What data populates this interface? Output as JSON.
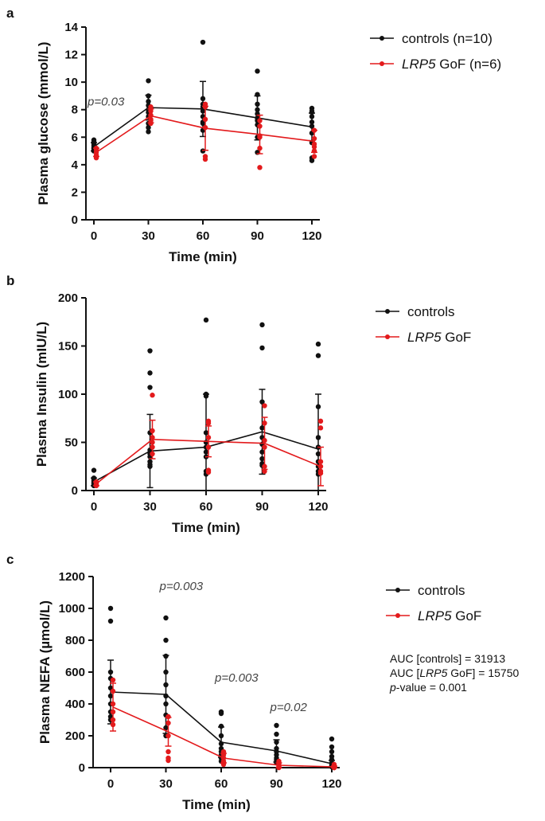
{
  "colors": {
    "controls": "#111111",
    "gof": "#e31a1c"
  },
  "chart_data": [
    {
      "panel": "a",
      "type": "line",
      "xlabel": "Time (min)",
      "ylabel": "Plasma glucose (mmol/L)",
      "x": [
        0,
        30,
        60,
        90,
        120
      ],
      "xticks": [
        "0",
        "30",
        "60",
        "90",
        "120"
      ],
      "yticks": [
        "0",
        "2",
        "4",
        "6",
        "8",
        "10",
        "12",
        "14"
      ],
      "ylim": [
        0,
        14
      ],
      "series": [
        {
          "name": "controls (n=10)",
          "name_parts": [
            "controls (n=10)"
          ],
          "color": "#111111",
          "means": [
            5.3,
            8.15,
            8.05,
            7.4,
            6.75
          ],
          "sd": [
            0.3,
            0.9,
            2.0,
            1.6,
            1.0
          ],
          "points": [
            [
              5.0,
              5.2,
              5.4,
              5.6,
              5.8,
              5.3,
              5.1,
              5.5,
              5.7,
              5.2
            ],
            [
              6.4,
              7.0,
              7.5,
              8.0,
              8.3,
              8.6,
              9.0,
              10.1,
              7.8,
              6.7
            ],
            [
              12.9,
              8.8,
              8.4,
              7.9,
              7.5,
              7.1,
              6.5,
              5.0,
              8.2,
              7.0
            ],
            [
              10.8,
              9.1,
              8.4,
              7.7,
              7.4,
              6.9,
              6.0,
              4.9,
              7.2,
              8.0
            ],
            [
              8.1,
              7.8,
              7.5,
              7.1,
              6.8,
              6.3,
              5.6,
              4.5,
              4.3,
              7.9
            ]
          ]
        },
        {
          "name": "LRP5 GoF (n=6)",
          "name_parts": [
            "LRP5",
            " GoF (n=6)"
          ],
          "color": "#e31a1c",
          "means": [
            4.9,
            7.55,
            6.65,
            6.2,
            5.7
          ],
          "sd": [
            0.3,
            0.5,
            1.6,
            1.4,
            0.8
          ],
          "points": [
            [
              4.5,
              4.7,
              4.9,
              5.1,
              5.2,
              4.6
            ],
            [
              7.0,
              7.3,
              7.6,
              7.9,
              8.2,
              7.2
            ],
            [
              4.4,
              4.6,
              6.7,
              7.3,
              8.2,
              8.4
            ],
            [
              3.8,
              5.2,
              6.1,
              6.8,
              7.2,
              6.0
            ],
            [
              4.6,
              5.0,
              5.5,
              5.9,
              6.5,
              5.3
            ]
          ]
        }
      ],
      "annotations": [
        {
          "text": "p=0.03",
          "x": 0,
          "y": 8.3
        }
      ]
    },
    {
      "panel": "b",
      "type": "line",
      "xlabel": "Time (min)",
      "ylabel": "Plasma Insulin (mIU/L)",
      "x": [
        0,
        30,
        60,
        90,
        120
      ],
      "xticks": [
        "0",
        "30",
        "60",
        "90",
        "120"
      ],
      "yticks": [
        "0",
        "50",
        "100",
        "150",
        "200"
      ],
      "ylim": [
        0,
        200
      ],
      "series": [
        {
          "name": "controls",
          "name_parts": [
            "controls"
          ],
          "color": "#111111",
          "means": [
            9,
            41,
            45,
            61,
            43
          ],
          "sd": [
            4,
            38,
            55,
            44,
            57
          ],
          "points": [
            [
              5,
              8,
              10,
              12,
              21,
              7,
              9,
              6,
              11,
              13
            ],
            [
              145,
              122,
              107,
              60,
              42,
              38,
              35,
              30,
              27,
              25
            ],
            [
              177,
              100,
              98,
              60,
              50,
              45,
              40,
              35,
              20,
              17
            ],
            [
              172,
              148,
              92,
              65,
              55,
              48,
              40,
              33,
              28,
              26
            ],
            [
              152,
              140,
              87,
              55,
              45,
              38,
              30,
              25,
              20,
              17
            ]
          ]
        },
        {
          "name": "LRP5 GoF",
          "name_parts": [
            "LRP5",
            " GoF"
          ],
          "color": "#e31a1c",
          "means": [
            7,
            53,
            51,
            49,
            25
          ],
          "sd": [
            2,
            20,
            16,
            27,
            20
          ],
          "points": [
            [
              5,
              6,
              7,
              8,
              9,
              6
            ],
            [
              99,
              62,
              55,
              50,
              45,
              38
            ],
            [
              72,
              70,
              55,
              45,
              21,
              19
            ],
            [
              88,
              70,
              52,
              45,
              25,
              20
            ],
            [
              72,
              65,
              30,
              25,
              20,
              18
            ]
          ]
        }
      ]
    },
    {
      "panel": "c",
      "type": "line",
      "xlabel": "Time (min)",
      "ylabel": "Plasma NEFA (µmol/L)",
      "x": [
        0,
        30,
        60,
        90,
        120
      ],
      "xticks": [
        "0",
        "30",
        "60",
        "90",
        "120"
      ],
      "yticks": [
        "0",
        "200",
        "400",
        "600",
        "800",
        "1000",
        "1200"
      ],
      "ylim": [
        0,
        1200
      ],
      "series": [
        {
          "name": "controls",
          "name_parts": [
            "controls"
          ],
          "color": "#111111",
          "means": [
            475,
            460,
            160,
            105,
            25
          ],
          "sd": [
            200,
            245,
            95,
            70,
            20
          ],
          "points": [
            [
              1000,
              920,
              600,
              560,
              500,
              450,
              400,
              350,
              320,
              300
            ],
            [
              940,
              800,
              700,
              600,
              520,
              450,
              400,
              330,
              250,
              200
            ],
            [
              350,
              340,
              260,
              200,
              150,
              120,
              100,
              80,
              60,
              40
            ],
            [
              265,
              210,
              160,
              120,
              100,
              80,
              60,
              50,
              40,
              30
            ],
            [
              180,
              130,
              100,
              70,
              50,
              30,
              20,
              15,
              10,
              5
            ]
          ]
        },
        {
          "name": "LRP5 GoF",
          "name_parts": [
            "LRP5",
            " GoF"
          ],
          "color": "#e31a1c",
          "means": [
            380,
            225,
            60,
            15,
            5
          ],
          "sd": [
            150,
            90,
            30,
            15,
            5
          ],
          "points": [
            [
              550,
              480,
              400,
              350,
              300,
              270
            ],
            [
              320,
              280,
              200,
              100,
              60,
              45
            ],
            [
              100,
              80,
              60,
              40,
              30,
              20
            ],
            [
              40,
              25,
              15,
              10,
              5,
              0
            ],
            [
              20,
              10,
              5,
              0,
              0,
              0
            ]
          ]
        }
      ],
      "annotations": [
        {
          "text": "p=0.003",
          "x": 30,
          "y": 1115
        },
        {
          "text": "p=0.003",
          "x": 60,
          "y": 540
        },
        {
          "text": "p=0.02",
          "x": 90,
          "y": 355
        }
      ]
    }
  ],
  "auc_text": {
    "line1": "AUC [controls] = 31913",
    "line2_pre": "AUC [",
    "line2_gene": "LRP5",
    "line2_post": " GoF] = 15750",
    "line3_p": "p",
    "line3_rest": "-value = 0.001"
  }
}
